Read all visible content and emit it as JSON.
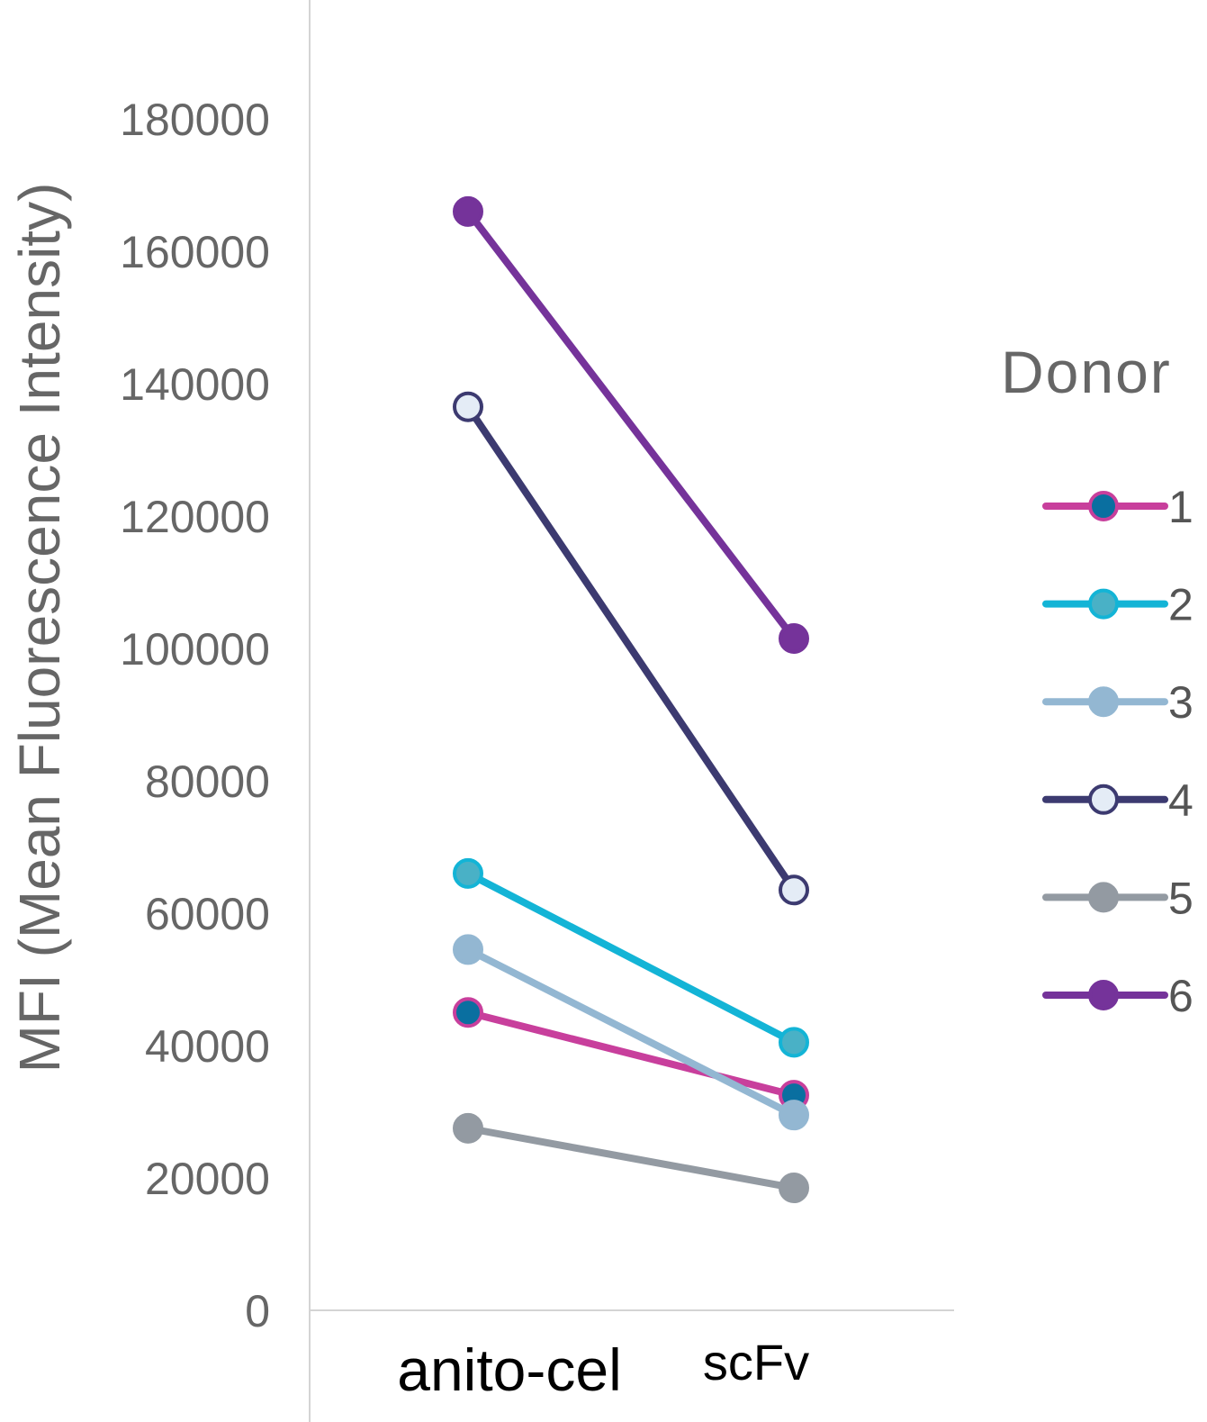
{
  "chart_data": {
    "type": "line",
    "title": "",
    "xlabel": "",
    "ylabel": "MFI (Mean Fluorescence Intensity)",
    "ylim": [
      0,
      190000
    ],
    "yticks": [
      0,
      20000,
      40000,
      60000,
      80000,
      100000,
      120000,
      140000,
      160000,
      180000
    ],
    "ytick_labels": [
      "0",
      "20000",
      "40000",
      "60000",
      "80000",
      "100000",
      "120000",
      "140000",
      "160000",
      "180000"
    ],
    "categories": [
      "anito-cel",
      "scFv"
    ],
    "grid": false,
    "legend": {
      "title": "Donor",
      "position": "right"
    },
    "series": [
      {
        "name": "1",
        "values": [
          45000,
          32500
        ],
        "line_color": "#c83f9c",
        "marker_fill": "#0a6fa0",
        "marker_edge": "#c83f9c"
      },
      {
        "name": "2",
        "values": [
          66000,
          40500
        ],
        "line_color": "#13b4d6",
        "marker_fill": "#49b1c6",
        "marker_edge": "#13b4d6"
      },
      {
        "name": "3",
        "values": [
          54500,
          29500
        ],
        "line_color": "#93b7d2",
        "marker_fill": "#93b7d2",
        "marker_edge": "#93b7d2"
      },
      {
        "name": "4",
        "values": [
          136500,
          63500
        ],
        "line_color": "#3c3a70",
        "marker_fill": "#e4ecf6",
        "marker_edge": "#3c3a70"
      },
      {
        "name": "5",
        "values": [
          27500,
          18500
        ],
        "line_color": "#939aa2",
        "marker_fill": "#939aa2",
        "marker_edge": "#939aa2"
      },
      {
        "name": "6",
        "values": [
          166000,
          101500
        ],
        "line_color": "#75339a",
        "marker_fill": "#75339a",
        "marker_edge": "#75339a"
      }
    ]
  }
}
